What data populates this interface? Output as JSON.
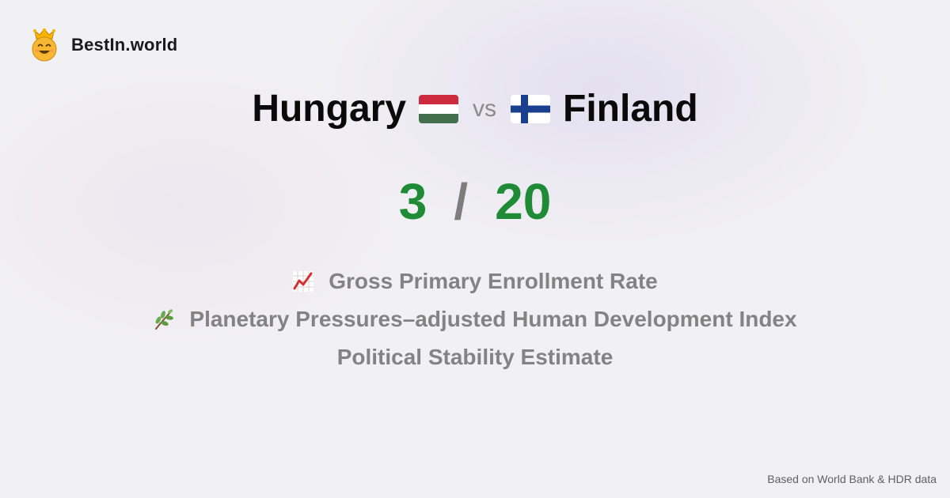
{
  "brand": {
    "name": "BestIn.world",
    "logo_icon": "crowned-smiley-icon"
  },
  "title": {
    "left_country": "Hungary",
    "left_flag": "hungary-flag-icon",
    "vs_label": "vs",
    "right_country": "Finland",
    "right_flag": "finland-flag-icon"
  },
  "score": {
    "left": "3",
    "separator": "/",
    "right": "20",
    "color": "#1f8b36"
  },
  "metrics": [
    {
      "icon": "chart-increasing-icon",
      "label": "Gross Primary Enrollment Rate"
    },
    {
      "icon": "herb-icon",
      "label": "Planetary Pressures–adjusted Human Development Index"
    },
    {
      "icon": "",
      "label": "Political Stability Estimate"
    }
  ],
  "footer": {
    "source": "Based on World Bank & HDR data"
  }
}
